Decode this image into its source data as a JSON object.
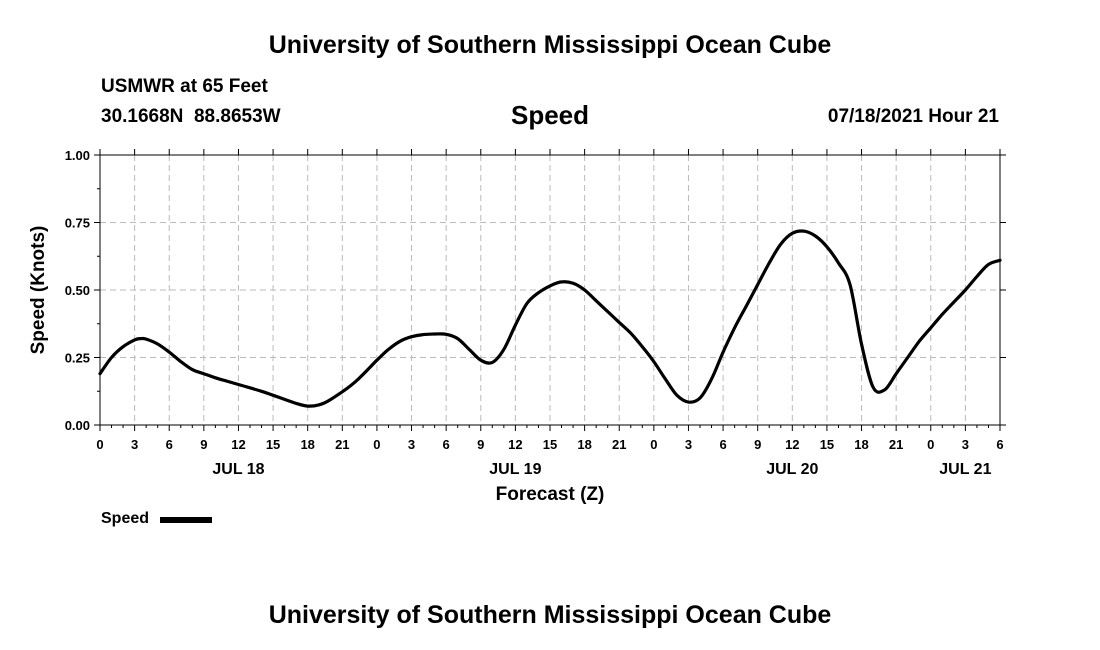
{
  "header": {
    "title": "University of Southern Mississippi Ocean Cube",
    "station": "USMWR at 65 Feet",
    "coords": "30.1668N  88.8653W",
    "variable": "Speed",
    "datetime": "07/18/2021 Hour 21"
  },
  "footer": {
    "title": "University of Southern Mississippi Ocean Cube"
  },
  "legend": {
    "label": "Speed"
  },
  "colors": {
    "line": "#000000",
    "grid": "#bbbbbb"
  },
  "chart_data": {
    "type": "line",
    "title": "Speed",
    "xlabel": "Forecast (Z)",
    "ylabel": "Speed (Knots)",
    "ylim": [
      0,
      1.0
    ],
    "yticks": [
      "0.00",
      "0.25",
      "0.50",
      "0.75",
      "1.00"
    ],
    "xlim_hours": [
      0,
      78
    ],
    "x_tick_labels": [
      "0",
      "3",
      "6",
      "9",
      "12",
      "15",
      "18",
      "21",
      "0",
      "3",
      "6",
      "9",
      "12",
      "15",
      "18",
      "21",
      "0",
      "3",
      "6",
      "9",
      "12",
      "15",
      "18",
      "21",
      "0",
      "3",
      "6"
    ],
    "date_labels": [
      {
        "label": "JUL 18",
        "hour": 12
      },
      {
        "label": "JUL 19",
        "hour": 36
      },
      {
        "label": "JUL 20",
        "hour": 60
      },
      {
        "label": "JUL 21",
        "hour": 75
      }
    ],
    "grid": true,
    "series": [
      {
        "name": "Speed",
        "x": [
          0,
          1,
          2,
          3,
          3.5,
          4,
          5,
          6,
          7,
          8,
          9,
          10,
          12,
          14,
          16,
          17,
          18,
          19,
          20,
          22,
          24,
          25,
          26,
          27,
          28,
          29,
          30,
          31,
          32,
          33,
          34,
          35,
          36,
          37,
          38,
          39,
          40,
          41,
          42,
          43,
          44,
          45,
          46,
          47,
          48,
          49,
          50,
          51,
          52,
          53,
          54,
          55,
          56,
          57,
          58,
          59,
          60,
          61,
          62,
          63,
          64,
          65,
          66,
          67,
          68,
          69,
          70,
          71,
          72,
          73,
          74,
          75,
          76,
          77,
          78
        ],
        "values": [
          0.19,
          0.25,
          0.29,
          0.315,
          0.32,
          0.318,
          0.3,
          0.27,
          0.235,
          0.205,
          0.19,
          0.175,
          0.15,
          0.125,
          0.095,
          0.08,
          0.07,
          0.075,
          0.095,
          0.155,
          0.24,
          0.28,
          0.31,
          0.327,
          0.335,
          0.337,
          0.336,
          0.32,
          0.28,
          0.24,
          0.232,
          0.28,
          0.37,
          0.45,
          0.49,
          0.515,
          0.53,
          0.525,
          0.5,
          0.46,
          0.42,
          0.38,
          0.34,
          0.29,
          0.235,
          0.17,
          0.11,
          0.085,
          0.1,
          0.17,
          0.27,
          0.36,
          0.44,
          0.52,
          0.6,
          0.67,
          0.71,
          0.718,
          0.7,
          0.66,
          0.6,
          0.52,
          0.3,
          0.14,
          0.13,
          0.19,
          0.25,
          0.31,
          0.36,
          0.41,
          0.455,
          0.5,
          0.55,
          0.595,
          0.61
        ]
      }
    ]
  }
}
